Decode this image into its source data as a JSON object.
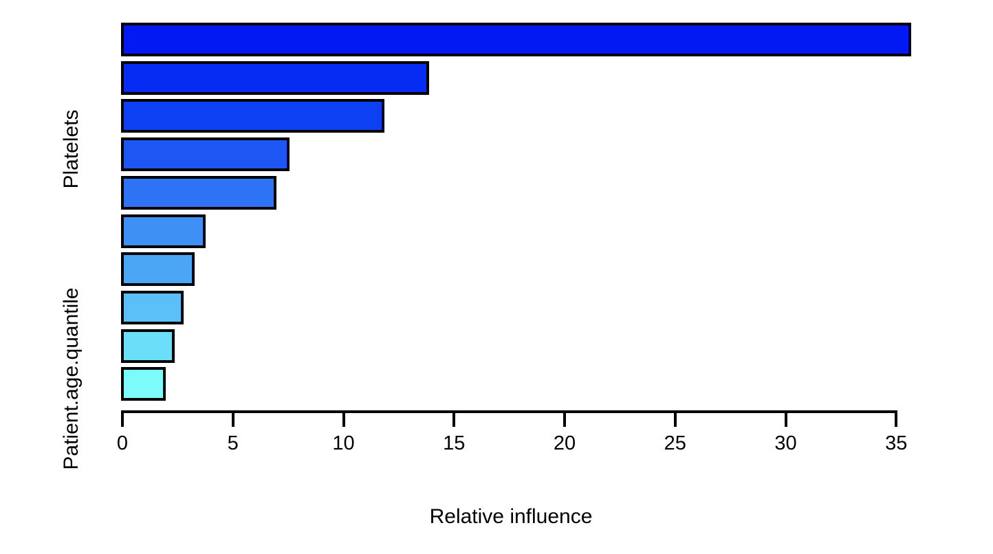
{
  "chart_data": {
    "type": "bar",
    "orientation": "horizontal",
    "title": "",
    "xlabel": "Relative influence",
    "ylabel": "",
    "xlim": [
      0,
      35.65
    ],
    "x_ticks": [
      0,
      5,
      10,
      15,
      20,
      25,
      30,
      35
    ],
    "grid": false,
    "legend": "none",
    "background": "#ffffff",
    "axis_color": "#000000",
    "bar_border_color": "#000000",
    "bars": [
      {
        "value": 35.6,
        "color": "#0319f3"
      },
      {
        "value": 13.8,
        "color": "#062bf2"
      },
      {
        "value": 11.8,
        "color": "#0c40f2"
      },
      {
        "value": 7.5,
        "color": "#1d56f3"
      },
      {
        "value": 6.9,
        "color": "#2e73f4"
      },
      {
        "value": 3.7,
        "color": "#3f90f5"
      },
      {
        "value": 3.2,
        "color": "#4ba7f6"
      },
      {
        "value": 2.7,
        "color": "#5ac0f7"
      },
      {
        "value": 2.3,
        "color": "#6bdef9"
      },
      {
        "value": 1.9,
        "color": "#7dfbfb"
      }
    ],
    "visible_axis_labels": [
      {
        "text": "Platelets",
        "bar_index": 3
      },
      {
        "text": "Patient.age.quantile",
        "bar_index": 9
      }
    ]
  }
}
